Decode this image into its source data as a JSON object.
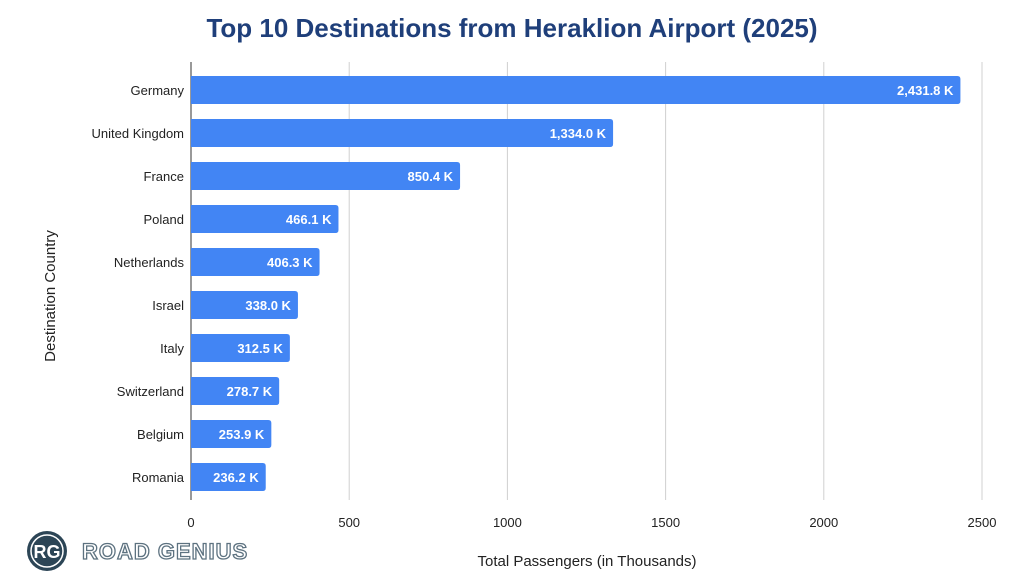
{
  "chart_data": {
    "type": "bar",
    "orientation": "horizontal",
    "title": "Top 10 Destinations from Heraklion Airport (2025)",
    "xlabel": "Total Passengers (in Thousands)",
    "ylabel": "Destination Country",
    "categories": [
      "Germany",
      "United Kingdom",
      "France",
      "Poland",
      "Netherlands",
      "Israel",
      "Italy",
      "Switzerland",
      "Belgium",
      "Romania"
    ],
    "values": [
      2431.8,
      1334.0,
      850.4,
      466.1,
      406.3,
      338.0,
      312.5,
      278.7,
      253.9,
      236.2
    ],
    "data_labels": [
      "2,431.8 K",
      "1,334.0 K",
      "850.4 K",
      "466.1 K",
      "406.3 K",
      "338.0 K",
      "312.5 K",
      "278.7 K",
      "253.9 K",
      "236.2 K"
    ],
    "xlim": [
      0,
      2500
    ],
    "xticks": [
      0,
      500,
      1000,
      1500,
      2000,
      2500
    ],
    "grid": true,
    "legend": "none",
    "colors": {
      "bar": "#4285f4",
      "title": "#1f3f7a",
      "grid": "#d0d0d0",
      "label_text": "#ffffff"
    }
  },
  "logo": {
    "initials": "RG",
    "text": "ROAD GENIUS",
    "color": "#2c4556"
  }
}
